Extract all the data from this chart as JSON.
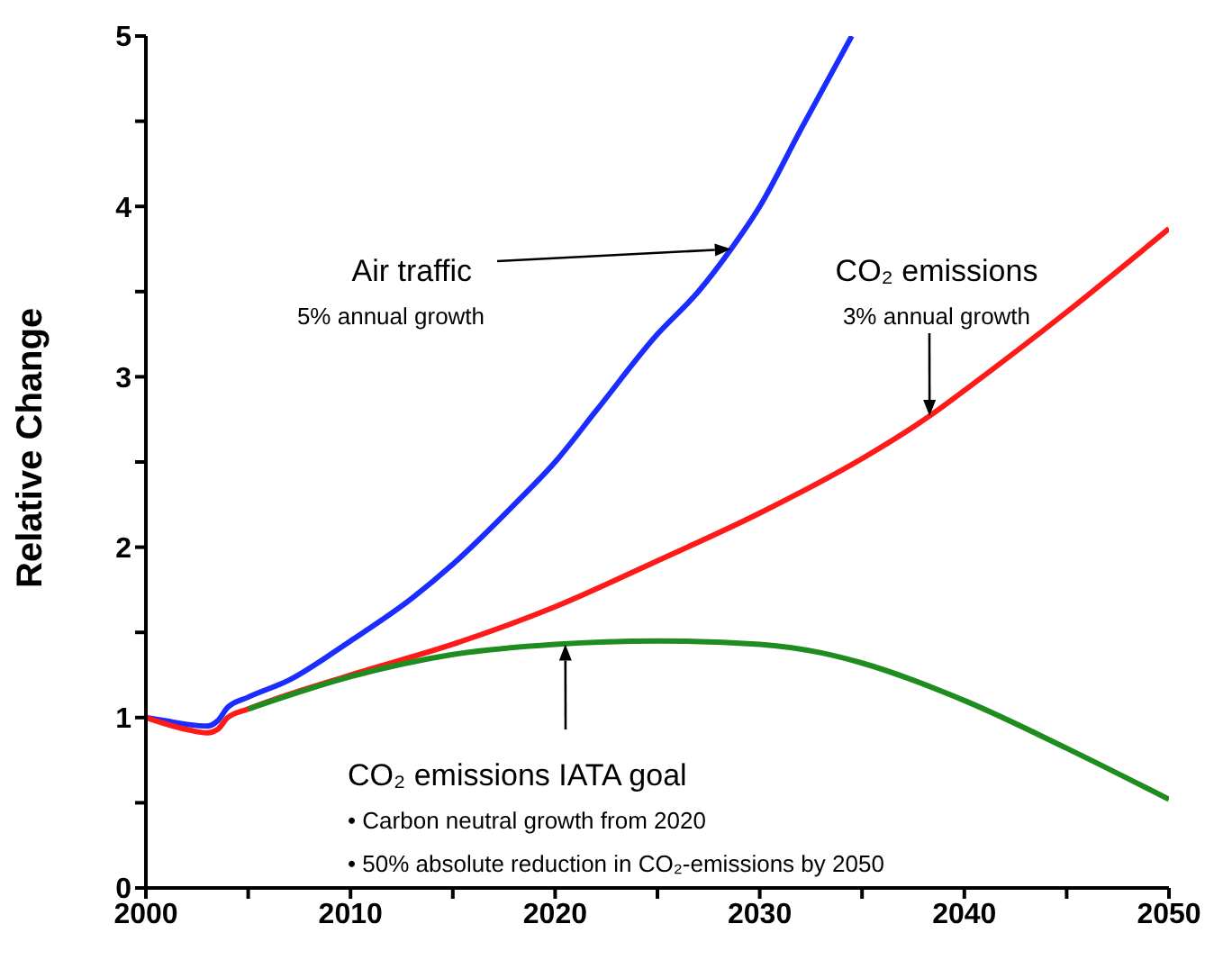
{
  "chart_data": {
    "type": "line",
    "ylabel": "Relative Change",
    "xlim": [
      2000,
      2050
    ],
    "ylim": [
      0,
      5
    ],
    "xticks": [
      2000,
      {
        "value": 2005,
        "label": null
      },
      2010,
      {
        "value": 2015,
        "label": null
      },
      2020,
      {
        "value": 2025,
        "label": null
      },
      2030,
      {
        "value": 2035,
        "label": null
      },
      2040,
      {
        "value": 2045,
        "label": null
      },
      2050
    ],
    "yticks": [
      0,
      {
        "value": 0.5,
        "label": null
      },
      1,
      {
        "value": 1.5,
        "label": null
      },
      2,
      {
        "value": 2.5,
        "label": null
      },
      3,
      {
        "value": 3.5,
        "label": null
      },
      4,
      {
        "value": 4.5,
        "label": null
      },
      5
    ],
    "grid": false,
    "marker": "none",
    "line_style": "solid",
    "series": [
      {
        "color": "#1a2cff",
        "x": [
          2000,
          2001,
          2002,
          2003,
          2003.5,
          2004,
          2005,
          2007,
          2010,
          2013,
          2015,
          2018,
          2020,
          2022,
          2025,
          2027,
          2028.6,
          2030,
          2032,
          2034.5
        ],
        "values": [
          1.0,
          0.98,
          0.96,
          0.95,
          0.98,
          1.06,
          1.12,
          1.22,
          1.45,
          1.7,
          1.9,
          2.25,
          2.5,
          2.8,
          3.25,
          3.5,
          3.75,
          4.0,
          4.45,
          5.0
        ]
      },
      {
        "color": "#ff1a1a",
        "x": [
          2000,
          2002,
          2003,
          2003.5,
          2004,
          2005,
          2010,
          2015,
          2020,
          2025,
          2030,
          2035,
          2038.3,
          2040,
          2045,
          2050
        ],
        "values": [
          1.0,
          0.93,
          0.91,
          0.93,
          1.0,
          1.05,
          1.25,
          1.43,
          1.65,
          1.92,
          2.2,
          2.52,
          2.77,
          2.92,
          3.38,
          3.87
        ]
      },
      {
        "color": "#1e8c1e",
        "x": [
          2005,
          2010,
          2015,
          2020,
          2025,
          2030,
          2033,
          2035,
          2040,
          2045,
          2050
        ],
        "values": [
          1.05,
          1.24,
          1.37,
          1.43,
          1.45,
          1.43,
          1.38,
          1.32,
          1.1,
          0.82,
          0.52
        ]
      }
    ],
    "annotations": [
      {
        "text": "Air traffic\n5% annual growth",
        "x": 2028.6,
        "y": 3.75
      },
      {
        "text": "CO₂ emissions\n3% annual growth",
        "x": 2038.3,
        "y": 2.77
      },
      {
        "text": "CO₂ emissions IATA goal",
        "x": 2020.5,
        "y": 1.43
      },
      "• Carbon neutral growth from 2020",
      "• 50% absolute reduction in CO₂-emissions by 2050"
    ]
  }
}
